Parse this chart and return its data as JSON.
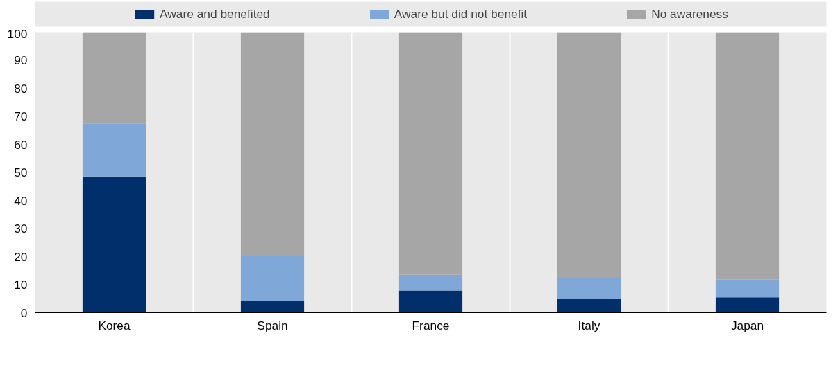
{
  "chart_data": {
    "type": "bar",
    "stacked": true,
    "categories": [
      "Korea",
      "Spain",
      "France",
      "Italy",
      "Japan"
    ],
    "series": [
      {
        "name": "Aware and benefited",
        "color": "#002f6c",
        "values": [
          48.6,
          4.1,
          7.9,
          5.0,
          5.5
        ]
      },
      {
        "name": "Aware but did not benefit",
        "color": "#7fa8d9",
        "values": [
          18.9,
          16.3,
          5.6,
          7.3,
          6.3
        ]
      },
      {
        "name": "No awareness",
        "color": "#a6a6a6",
        "values": [
          32.5,
          79.6,
          86.5,
          87.7,
          88.2
        ]
      }
    ],
    "ylim": [
      0,
      100
    ],
    "yticks": [
      0,
      10,
      20,
      30,
      40,
      50,
      60,
      70,
      80,
      90,
      100
    ],
    "grid": "x",
    "legend": "top"
  }
}
